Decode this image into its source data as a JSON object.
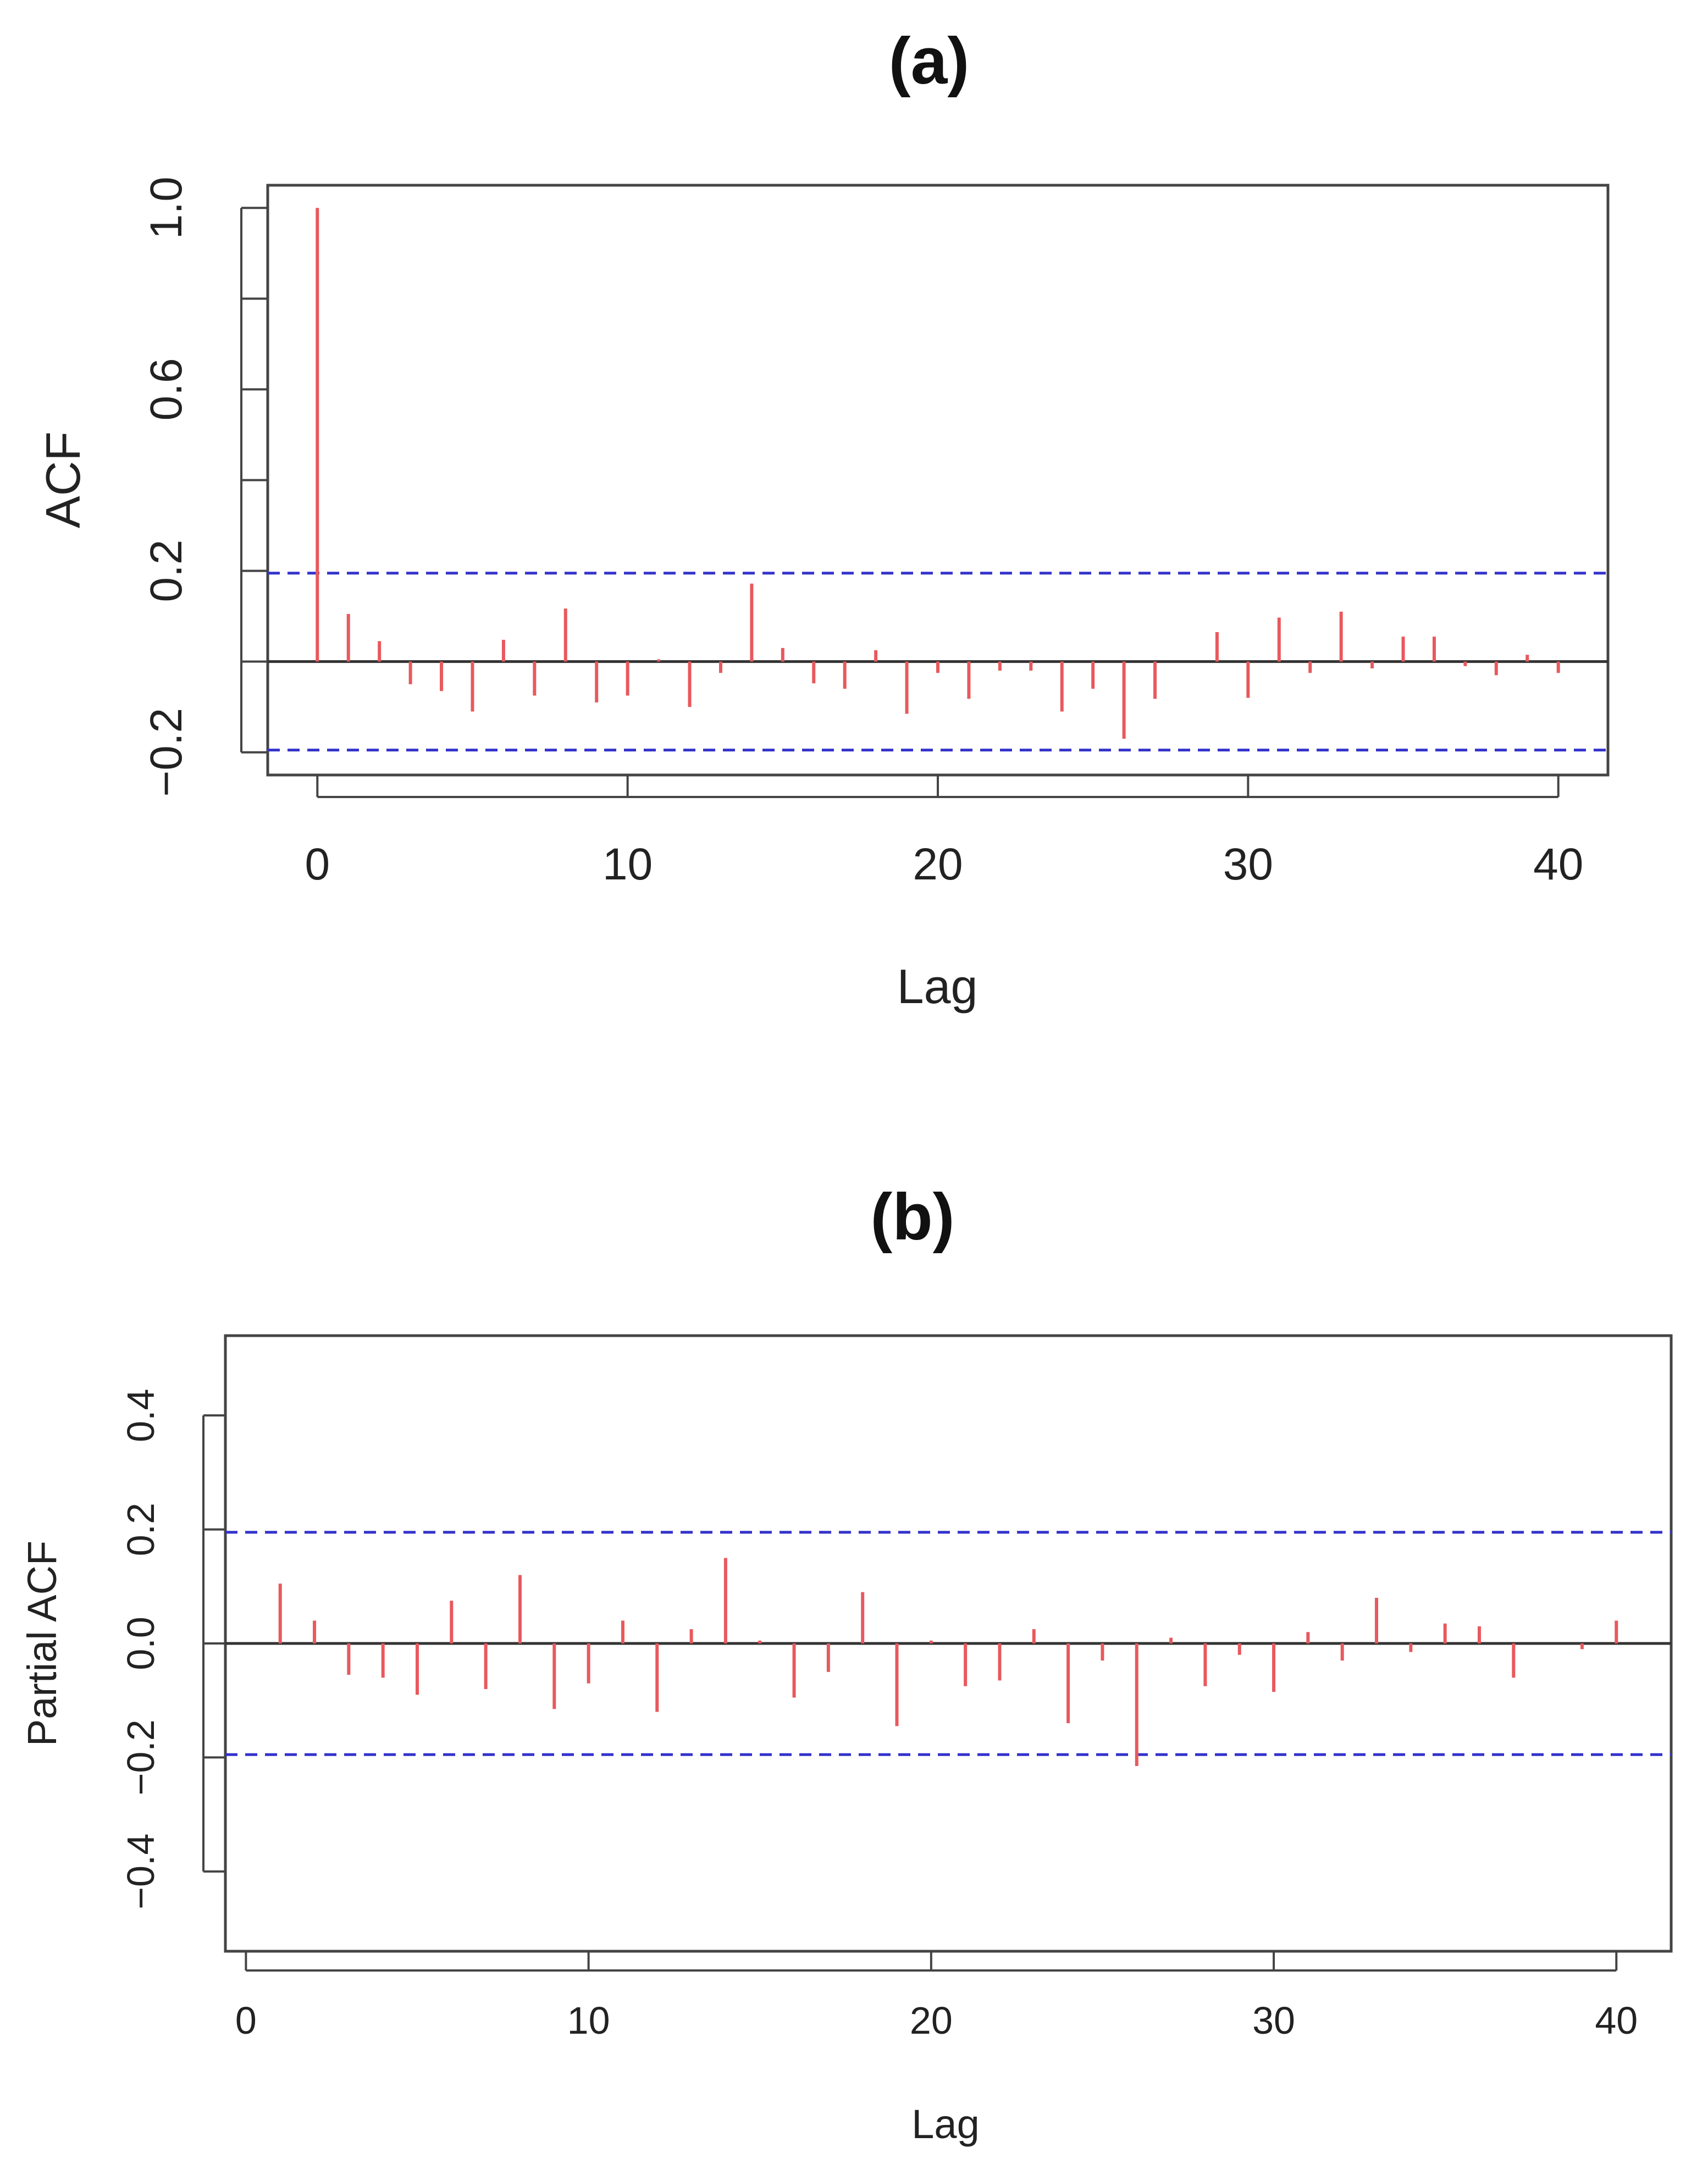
{
  "chart_data": [
    {
      "panel": "(a)",
      "type": "bar",
      "title": "(a)",
      "xlabel": "Lag",
      "ylabel": "ACF",
      "xlim": [
        -1.6,
        41.6
      ],
      "ylim": [
        -0.25,
        1.05
      ],
      "x_ticks": [
        0,
        10,
        20,
        30,
        40
      ],
      "x_tick_labels": [
        "0",
        "10",
        "20",
        "30",
        "40"
      ],
      "y_ticks": [
        -0.2,
        0.0,
        0.2,
        0.4,
        0.6,
        0.8,
        1.0
      ],
      "y_tick_labels": [
        "-0.2",
        "",
        "0.2",
        "",
        "0.6",
        "",
        "1.0"
      ],
      "confidence_bounds": [
        0.195,
        -0.195
      ],
      "lags": [
        0,
        1,
        2,
        3,
        4,
        5,
        6,
        7,
        8,
        9,
        10,
        11,
        12,
        13,
        14,
        15,
        16,
        17,
        18,
        19,
        20,
        21,
        22,
        23,
        24,
        25,
        26,
        27,
        28,
        29,
        30,
        31,
        32,
        33,
        34,
        35,
        36,
        37,
        38,
        39,
        40
      ],
      "values": [
        1.0,
        0.105,
        0.045,
        -0.05,
        -0.065,
        -0.11,
        0.048,
        -0.075,
        0.117,
        -0.09,
        -0.075,
        0.005,
        -0.1,
        -0.025,
        0.172,
        0.03,
        -0.048,
        -0.06,
        0.025,
        -0.115,
        -0.025,
        -0.082,
        -0.02,
        -0.02,
        -0.11,
        -0.06,
        -0.17,
        -0.082,
        0.0,
        0.065,
        -0.08,
        0.097,
        -0.025,
        0.11,
        -0.015,
        0.055,
        0.055,
        -0.01,
        -0.03,
        0.015,
        -0.025
      ]
    },
    {
      "panel": "(b)",
      "type": "bar",
      "title": "(b)",
      "xlabel": "Lag",
      "ylabel": "Partial ACF",
      "xlim": [
        -0.6,
        41.6
      ],
      "ylim": [
        -0.54,
        0.54
      ],
      "x_ticks": [
        0,
        10,
        20,
        30,
        40
      ],
      "x_tick_labels": [
        "0",
        "10",
        "20",
        "30",
        "40"
      ],
      "y_ticks": [
        -0.4,
        -0.2,
        0.0,
        0.2,
        0.4
      ],
      "y_tick_labels": [
        "-0.4",
        "-0.2",
        "0.0",
        "0.2",
        "0.4"
      ],
      "confidence_bounds": [
        0.195,
        -0.195
      ],
      "lags": [
        1,
        2,
        3,
        4,
        5,
        6,
        7,
        8,
        9,
        10,
        11,
        12,
        13,
        14,
        15,
        16,
        17,
        18,
        19,
        20,
        21,
        22,
        23,
        24,
        25,
        26,
        27,
        28,
        29,
        30,
        31,
        32,
        33,
        34,
        35,
        36,
        37,
        38,
        39,
        40
      ],
      "values": [
        0.105,
        0.04,
        -0.055,
        -0.06,
        -0.09,
        0.075,
        -0.08,
        0.12,
        -0.115,
        -0.07,
        0.04,
        -0.12,
        0.025,
        0.15,
        0.005,
        -0.095,
        -0.05,
        0.09,
        -0.145,
        0.005,
        -0.075,
        -0.065,
        0.025,
        -0.14,
        -0.03,
        -0.215,
        0.01,
        -0.075,
        -0.02,
        -0.085,
        0.02,
        -0.03,
        0.08,
        -0.015,
        0.035,
        0.03,
        -0.06,
        0.0,
        -0.01,
        0.04
      ]
    }
  ],
  "colors": {
    "spike": "#e8595d",
    "bound": "#3333cc",
    "zero_line": "#333333",
    "axis": "#444444"
  }
}
